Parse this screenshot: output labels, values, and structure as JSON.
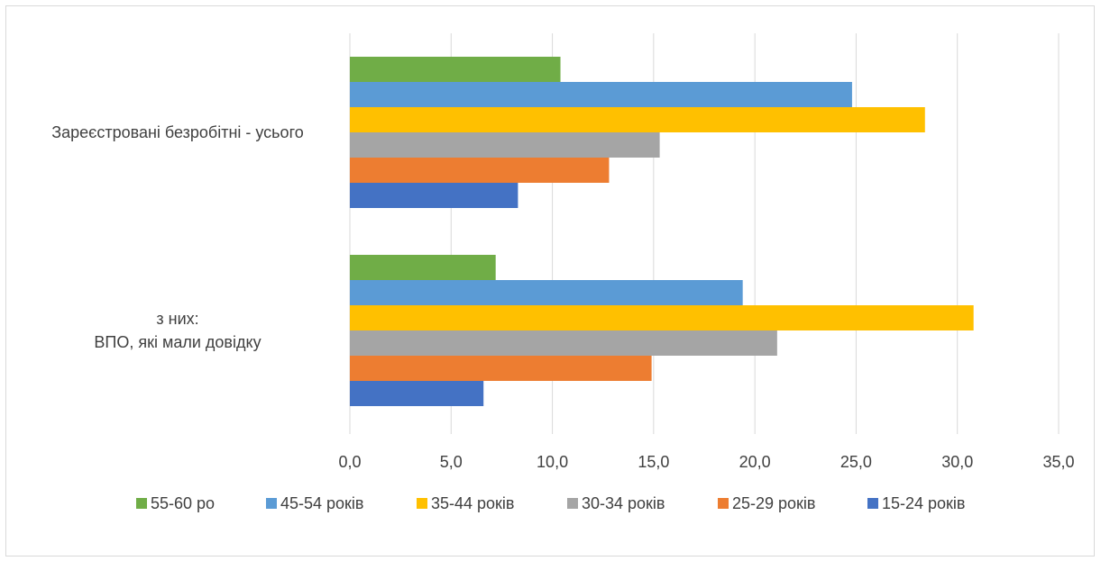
{
  "chart_data": {
    "type": "bar",
    "orientation": "horizontal",
    "categories": [
      "Зареєстровані безробітні - усього",
      "з них:\nВПО, які мали довідку"
    ],
    "series": [
      {
        "name": "55-60 ро",
        "color": "#70ad47",
        "values": [
          10.4,
          7.2
        ]
      },
      {
        "name": "45-54 років",
        "color": "#5b9bd5",
        "values": [
          24.8,
          19.4
        ]
      },
      {
        "name": "35-44 років",
        "color": "#ffc000",
        "values": [
          28.4,
          30.8
        ]
      },
      {
        "name": "30-34 років",
        "color": "#a5a5a5",
        "values": [
          15.3,
          21.1
        ]
      },
      {
        "name": "25-29 років",
        "color": "#ed7d31",
        "values": [
          12.8,
          14.9
        ]
      },
      {
        "name": "15-24 років",
        "color": "#4472c4",
        "values": [
          8.3,
          6.6
        ]
      }
    ],
    "xlim": [
      0,
      35
    ],
    "ticks": [
      "0,0",
      "5,0",
      "10,0",
      "15,0",
      "20,0",
      "25,0",
      "30,0",
      "35,0"
    ],
    "tick_step": 5,
    "grid": true,
    "legend_position": "bottom",
    "title": "",
    "xlabel": "",
    "ylabel": ""
  }
}
